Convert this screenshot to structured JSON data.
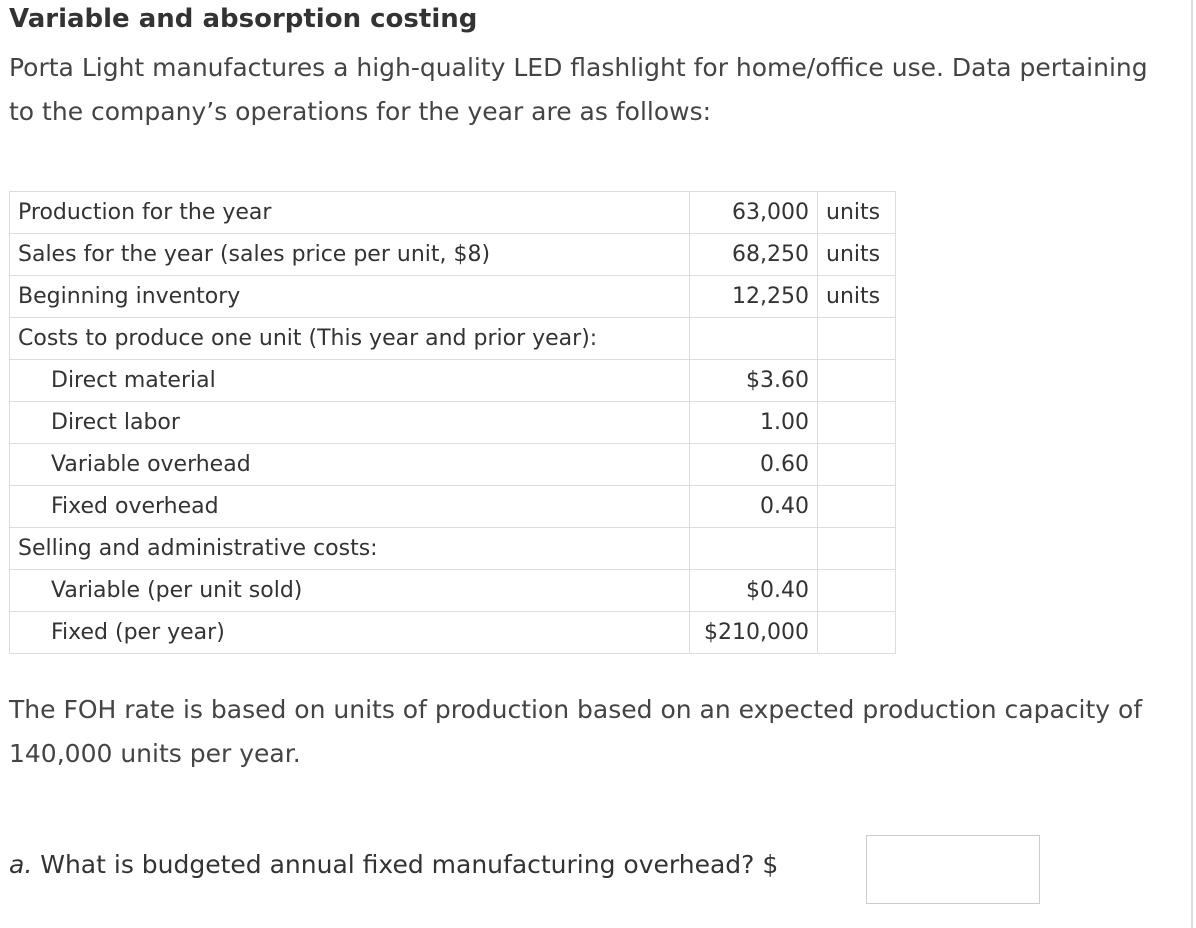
{
  "title": "Variable and absorption costing",
  "intro": "Porta Light manufactures a high-quality LED flashlight for home/office use. Data pertaining to the company’s operations for the year are as follows:",
  "table": {
    "rows": [
      [
        "Production for the year",
        "63,000",
        "units"
      ],
      [
        "Sales for the year (sales price per unit, $8)",
        "68,250",
        "units"
      ],
      [
        "Beginning inventory",
        "12,250",
        "units"
      ],
      [
        "Costs to produce one unit (This year and prior year):"
      ],
      [
        "Direct material",
        "$3.60"
      ],
      [
        "Direct labor",
        "1.00"
      ],
      [
        "Variable overhead",
        "0.60"
      ],
      [
        "Fixed overhead",
        "0.40"
      ],
      [
        "Selling and administrative costs:"
      ],
      [
        "Variable (per unit sold)",
        "$0.40"
      ],
      [
        "Fixed (per year)",
        "$210,000"
      ]
    ]
  },
  "note": "The FOH rate is based on units of production based on an expected production capacity of 140,000 units per year.",
  "question": {
    "letter": "a.",
    "text": "What is budgeted annual fixed manufacturing overhead? $"
  }
}
